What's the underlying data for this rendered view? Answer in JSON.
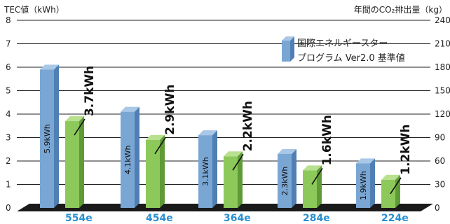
{
  "chart_data": {
    "type": "bar",
    "title": "",
    "ylabel_left": "TEC値（kWh）",
    "ylabel_right": "年間のCO₂排出量（kg）",
    "left_ticks": [
      "0",
      "1",
      "2",
      "3",
      "4",
      "5",
      "6",
      "7",
      "8"
    ],
    "right_ticks": [
      "0",
      "30",
      "60",
      "90",
      "120",
      "150",
      "180",
      "210",
      "240"
    ],
    "ylim_left": [
      0,
      8
    ],
    "ylim_right": [
      0,
      240
    ],
    "categories": [
      "554e",
      "454e",
      "364e",
      "284e",
      "224e"
    ],
    "series": [
      {
        "name": "",
        "color": "#7aa6d4",
        "values": [
          5.9,
          4.1,
          3.1,
          2.3,
          1.9
        ],
        "labels": [
          "5.9kWh",
          "4.1kWh",
          "3.1kWh",
          "2.3kWh",
          "1.9kWh"
        ]
      },
      {
        "name": "国際エネルギースター プログラム Ver2.0 基準値",
        "legend_lines": [
          "国際エネルギースター",
          "プログラム Ver2.0 基準値"
        ],
        "color": "#8cc95a",
        "values": [
          3.7,
          2.9,
          2.2,
          1.6,
          1.2
        ],
        "labels": [
          "3.7kWh",
          "2.9kWh",
          "2.2kWh",
          "1.6kWh",
          "1.2kWh"
        ]
      }
    ],
    "grid": true,
    "legend_position": "top-right"
  }
}
